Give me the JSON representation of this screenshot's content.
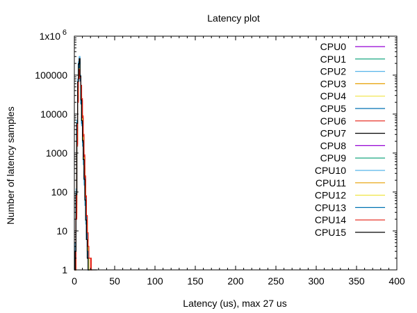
{
  "chart_data": {
    "type": "line",
    "title": "Latency plot",
    "xlabel": "Latency (us), max 27 us",
    "ylabel": "Number of latency samples",
    "xlim": [
      0,
      400
    ],
    "ylim": [
      1,
      1000000
    ],
    "yscale": "log",
    "grid": false,
    "legend_position": "top-right",
    "x_ticks": [
      "0",
      "50",
      "100",
      "150",
      "200",
      "250",
      "300",
      "350",
      "400"
    ],
    "y_ticks": [
      {
        "value": 1,
        "label": "1"
      },
      {
        "value": 10,
        "label": "10"
      },
      {
        "value": 100,
        "label": "100"
      },
      {
        "value": 1000,
        "label": "1000"
      },
      {
        "value": 10000,
        "label": "10000"
      },
      {
        "value": 100000,
        "label": "100000"
      },
      {
        "value": 1000000,
        "label": "1x10",
        "exp": "6"
      }
    ],
    "series": [
      {
        "name": "CPU0",
        "color": "#9400d3",
        "points": [
          [
            0,
            1
          ],
          [
            1,
            3
          ],
          [
            2,
            80
          ],
          [
            3,
            5000
          ],
          [
            4,
            60000
          ],
          [
            5,
            180000
          ],
          [
            6,
            250000
          ],
          [
            7,
            90000
          ],
          [
            8,
            25000
          ],
          [
            9,
            8000
          ],
          [
            10,
            3000
          ],
          [
            11,
            1200
          ],
          [
            12,
            400
          ],
          [
            13,
            120
          ],
          [
            14,
            40
          ],
          [
            15,
            12
          ],
          [
            16,
            4
          ],
          [
            17,
            2
          ],
          [
            18,
            1
          ]
        ]
      },
      {
        "name": "CPU1",
        "color": "#009e73",
        "points": [
          [
            0,
            1
          ],
          [
            1,
            2
          ],
          [
            2,
            60
          ],
          [
            3,
            4000
          ],
          [
            4,
            50000
          ],
          [
            5,
            160000
          ],
          [
            6,
            230000
          ],
          [
            7,
            80000
          ],
          [
            8,
            20000
          ],
          [
            9,
            6000
          ],
          [
            10,
            2000
          ],
          [
            11,
            800
          ],
          [
            12,
            250
          ],
          [
            13,
            80
          ],
          [
            14,
            25
          ],
          [
            15,
            8
          ],
          [
            16,
            3
          ],
          [
            17,
            1
          ]
        ]
      },
      {
        "name": "CPU2",
        "color": "#56b4e9",
        "points": [
          [
            0,
            1
          ],
          [
            1,
            5
          ],
          [
            2,
            120
          ],
          [
            3,
            7000
          ],
          [
            4,
            80000
          ],
          [
            5,
            220000
          ],
          [
            6,
            300000
          ],
          [
            7,
            100000
          ],
          [
            8,
            22000
          ],
          [
            9,
            5000
          ],
          [
            10,
            1500
          ],
          [
            11,
            500
          ],
          [
            12,
            150
          ],
          [
            13,
            45
          ],
          [
            14,
            15
          ],
          [
            15,
            6
          ],
          [
            16,
            2
          ],
          [
            17,
            1
          ]
        ]
      },
      {
        "name": "CPU3",
        "color": "#e69f00",
        "points": [
          [
            0,
            1
          ],
          [
            2,
            40
          ],
          [
            3,
            3000
          ],
          [
            4,
            40000
          ],
          [
            5,
            140000
          ],
          [
            6,
            200000
          ],
          [
            7,
            85000
          ],
          [
            8,
            30000
          ],
          [
            9,
            10000
          ],
          [
            10,
            3500
          ],
          [
            11,
            1300
          ],
          [
            12,
            450
          ],
          [
            13,
            150
          ],
          [
            14,
            50
          ],
          [
            15,
            18
          ],
          [
            16,
            7
          ],
          [
            17,
            3
          ],
          [
            18,
            1
          ]
        ]
      },
      {
        "name": "CPU4",
        "color": "#f0e442",
        "points": [
          [
            0,
            1
          ],
          [
            2,
            30
          ],
          [
            3,
            2500
          ],
          [
            4,
            35000
          ],
          [
            5,
            120000
          ],
          [
            6,
            190000
          ],
          [
            7,
            75000
          ],
          [
            8,
            28000
          ],
          [
            9,
            9000
          ],
          [
            10,
            3200
          ],
          [
            11,
            1100
          ],
          [
            12,
            380
          ],
          [
            13,
            130
          ],
          [
            14,
            45
          ],
          [
            15,
            15
          ],
          [
            16,
            5
          ],
          [
            17,
            2
          ],
          [
            18,
            1
          ]
        ]
      },
      {
        "name": "CPU5",
        "color": "#0072b2",
        "points": [
          [
            0,
            1
          ],
          [
            1,
            2
          ],
          [
            2,
            50
          ],
          [
            3,
            3500
          ],
          [
            4,
            45000
          ],
          [
            5,
            150000
          ],
          [
            6,
            210000
          ],
          [
            7,
            70000
          ],
          [
            8,
            18000
          ],
          [
            9,
            5500
          ],
          [
            10,
            1800
          ],
          [
            11,
            650
          ],
          [
            12,
            220
          ],
          [
            13,
            70
          ],
          [
            14,
            22
          ],
          [
            15,
            8
          ],
          [
            16,
            3
          ],
          [
            17,
            1
          ]
        ]
      },
      {
        "name": "CPU6",
        "color": "#e51e10",
        "points": [
          [
            0,
            1
          ],
          [
            2,
            20
          ],
          [
            3,
            1500
          ],
          [
            4,
            20000
          ],
          [
            5,
            80000
          ],
          [
            6,
            130000
          ],
          [
            7,
            90000
          ],
          [
            8,
            55000
          ],
          [
            9,
            25000
          ],
          [
            10,
            9000
          ],
          [
            11,
            3000
          ],
          [
            12,
            900
          ],
          [
            13,
            260
          ],
          [
            14,
            80
          ],
          [
            15,
            25
          ],
          [
            16,
            9
          ],
          [
            17,
            4
          ],
          [
            18,
            2
          ],
          [
            20,
            1
          ]
        ]
      },
      {
        "name": "CPU7",
        "color": "#000000",
        "points": [
          [
            0,
            1
          ],
          [
            1,
            3
          ],
          [
            2,
            90
          ],
          [
            3,
            6000
          ],
          [
            4,
            70000
          ],
          [
            5,
            200000
          ],
          [
            6,
            270000
          ],
          [
            7,
            95000
          ],
          [
            8,
            24000
          ],
          [
            9,
            7000
          ],
          [
            10,
            2200
          ],
          [
            11,
            700
          ],
          [
            12,
            220
          ],
          [
            13,
            65
          ],
          [
            14,
            20
          ],
          [
            15,
            6
          ],
          [
            16,
            2
          ],
          [
            17,
            1
          ]
        ]
      },
      {
        "name": "CPU8",
        "color": "#9400d3",
        "points": [
          [
            0,
            1
          ],
          [
            2,
            35
          ],
          [
            3,
            2800
          ],
          [
            4,
            38000
          ],
          [
            5,
            130000
          ],
          [
            6,
            195000
          ],
          [
            7,
            80000
          ],
          [
            8,
            26000
          ],
          [
            9,
            8500
          ],
          [
            10,
            2900
          ],
          [
            11,
            1000
          ],
          [
            12,
            330
          ],
          [
            13,
            110
          ],
          [
            14,
            35
          ],
          [
            15,
            11
          ],
          [
            16,
            4
          ],
          [
            17,
            1
          ]
        ]
      },
      {
        "name": "CPU9",
        "color": "#009e73",
        "points": [
          [
            0,
            1
          ],
          [
            2,
            45
          ],
          [
            3,
            3200
          ],
          [
            4,
            42000
          ],
          [
            5,
            145000
          ],
          [
            6,
            205000
          ],
          [
            7,
            82000
          ],
          [
            8,
            24000
          ],
          [
            9,
            7500
          ],
          [
            10,
            2500
          ],
          [
            11,
            850
          ],
          [
            12,
            280
          ],
          [
            13,
            90
          ],
          [
            14,
            30
          ],
          [
            15,
            10
          ],
          [
            16,
            4
          ],
          [
            17,
            1
          ]
        ]
      },
      {
        "name": "CPU10",
        "color": "#56b4e9",
        "points": [
          [
            0,
            1
          ],
          [
            1,
            4
          ],
          [
            2,
            100
          ],
          [
            3,
            6500
          ],
          [
            4,
            75000
          ],
          [
            5,
            210000
          ],
          [
            6,
            280000
          ],
          [
            7,
            92000
          ],
          [
            8,
            21000
          ],
          [
            9,
            5200
          ],
          [
            10,
            1600
          ],
          [
            11,
            520
          ],
          [
            12,
            170
          ],
          [
            13,
            55
          ],
          [
            14,
            18
          ],
          [
            15,
            6
          ],
          [
            16,
            2
          ],
          [
            17,
            1
          ]
        ]
      },
      {
        "name": "CPU11",
        "color": "#e69f00",
        "points": [
          [
            0,
            1
          ],
          [
            2,
            25
          ],
          [
            3,
            2200
          ],
          [
            4,
            30000
          ],
          [
            5,
            110000
          ],
          [
            6,
            180000
          ],
          [
            7,
            78000
          ],
          [
            8,
            29000
          ],
          [
            9,
            9500
          ],
          [
            10,
            3300
          ],
          [
            11,
            1150
          ],
          [
            12,
            400
          ],
          [
            13,
            140
          ],
          [
            14,
            48
          ],
          [
            15,
            16
          ],
          [
            16,
            6
          ],
          [
            17,
            2
          ],
          [
            18,
            1
          ]
        ]
      },
      {
        "name": "CPU12",
        "color": "#f0e442",
        "points": [
          [
            0,
            1
          ],
          [
            2,
            28
          ],
          [
            3,
            2400
          ],
          [
            4,
            33000
          ],
          [
            5,
            115000
          ],
          [
            6,
            185000
          ],
          [
            7,
            76000
          ],
          [
            8,
            27000
          ],
          [
            9,
            8800
          ],
          [
            10,
            3000
          ],
          [
            11,
            1050
          ],
          [
            12,
            360
          ],
          [
            13,
            125
          ],
          [
            14,
            42
          ],
          [
            15,
            14
          ],
          [
            16,
            5
          ],
          [
            17,
            2
          ],
          [
            18,
            1
          ]
        ]
      },
      {
        "name": "CPU13",
        "color": "#0072b2",
        "points": [
          [
            0,
            1
          ],
          [
            1,
            2
          ],
          [
            2,
            55
          ],
          [
            3,
            3800
          ],
          [
            4,
            48000
          ],
          [
            5,
            155000
          ],
          [
            6,
            215000
          ],
          [
            7,
            72000
          ],
          [
            8,
            19000
          ],
          [
            9,
            5800
          ],
          [
            10,
            1900
          ],
          [
            11,
            680
          ],
          [
            12,
            230
          ],
          [
            13,
            75
          ],
          [
            14,
            24
          ],
          [
            15,
            9
          ],
          [
            16,
            3
          ],
          [
            17,
            1
          ]
        ]
      },
      {
        "name": "CPU14",
        "color": "#e51e10",
        "points": [
          [
            0,
            1
          ],
          [
            2,
            22
          ],
          [
            3,
            1700
          ],
          [
            4,
            22000
          ],
          [
            5,
            85000
          ],
          [
            6,
            140000
          ],
          [
            7,
            88000
          ],
          [
            8,
            50000
          ],
          [
            9,
            22000
          ],
          [
            10,
            8000
          ],
          [
            11,
            2700
          ],
          [
            12,
            800
          ],
          [
            13,
            240
          ],
          [
            14,
            75
          ],
          [
            15,
            24
          ],
          [
            16,
            9
          ],
          [
            17,
            4
          ],
          [
            18,
            2
          ],
          [
            21,
            1
          ]
        ]
      },
      {
        "name": "CPU15",
        "color": "#000000",
        "points": [
          [
            0,
            1
          ],
          [
            1,
            3
          ],
          [
            2,
            85
          ],
          [
            3,
            5800
          ],
          [
            4,
            68000
          ],
          [
            5,
            195000
          ],
          [
            6,
            265000
          ],
          [
            7,
            93000
          ],
          [
            8,
            23000
          ],
          [
            9,
            6800
          ],
          [
            10,
            2100
          ],
          [
            11,
            680
          ],
          [
            12,
            210
          ],
          [
            13,
            62
          ],
          [
            14,
            19
          ],
          [
            15,
            6
          ],
          [
            16,
            2
          ],
          [
            17,
            1
          ],
          [
            27,
            1
          ]
        ]
      }
    ]
  }
}
